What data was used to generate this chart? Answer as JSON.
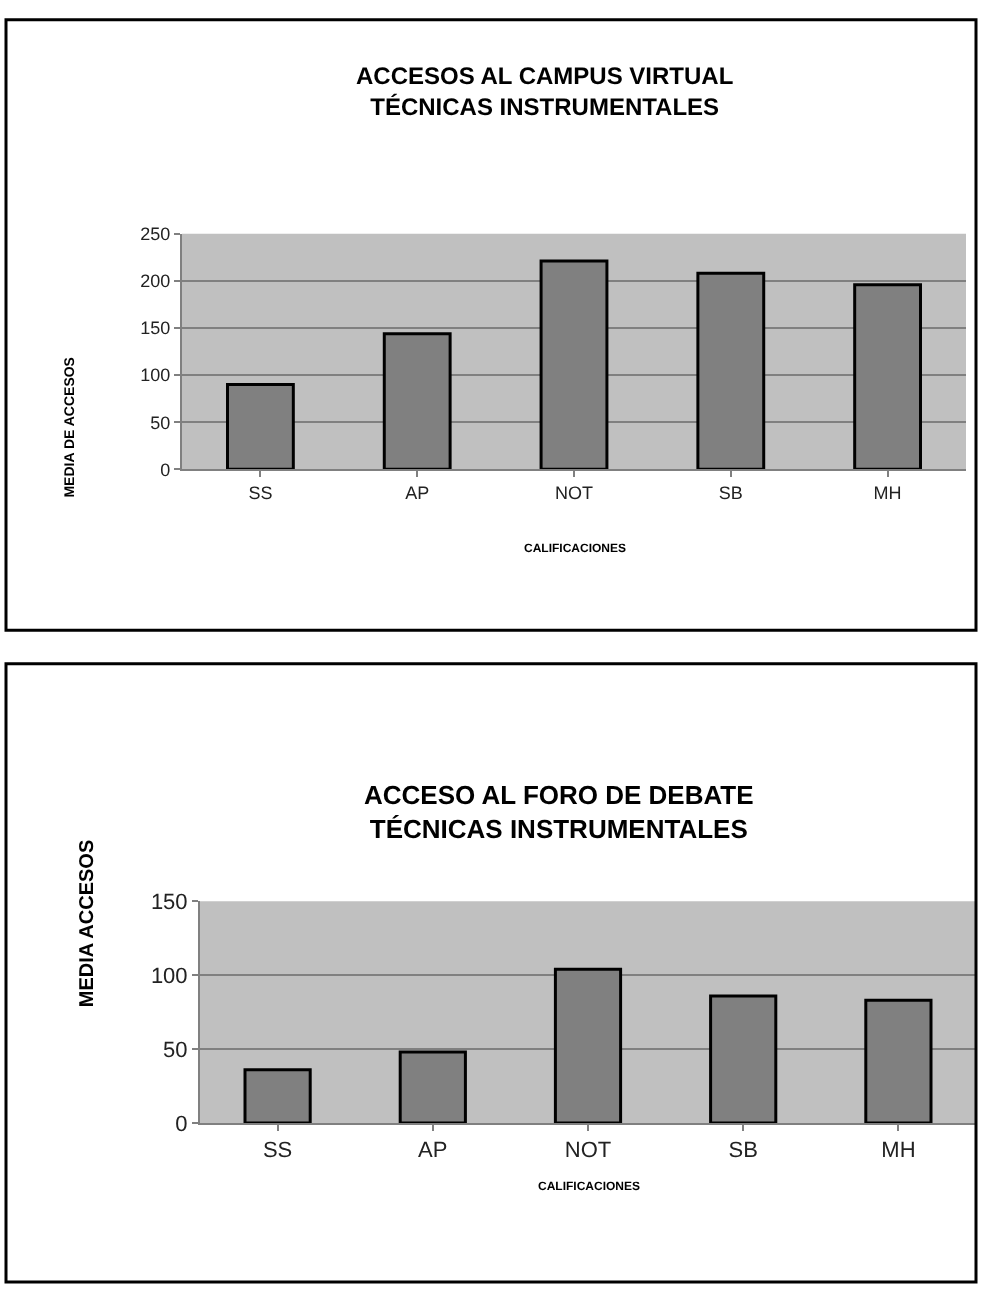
{
  "chart_data": [
    {
      "type": "bar",
      "title": "ACCESOS AL CAMPUS VIRTUAL\nTÉCNICAS INSTRUMENTALES",
      "xlabel": "CALIFICACIONES",
      "ylabel": "MEDIA DE ACCESOS",
      "categories": [
        "SS",
        "AP",
        "NOT",
        "SB",
        "MH"
      ],
      "values": [
        90,
        144,
        221,
        208,
        196
      ],
      "color": "#808080",
      "ylim": [
        0,
        250
      ],
      "yticks": [
        0,
        50,
        100,
        150,
        200,
        250
      ],
      "grid": "y"
    },
    {
      "type": "bar",
      "title": "ACCESO AL FORO DE DEBATE\nTÉCNICAS INSTRUMENTALES",
      "xlabel": "CALIFICACIONES",
      "ylabel": "MEDIA ACCESOS",
      "categories": [
        "SS",
        "AP",
        "NOT",
        "SB",
        "MH"
      ],
      "values": [
        36,
        48,
        104,
        86,
        83
      ],
      "color": "#808080",
      "ylim": [
        0,
        150
      ],
      "yticks": [
        0,
        50,
        100,
        150
      ],
      "grid": "y"
    }
  ]
}
